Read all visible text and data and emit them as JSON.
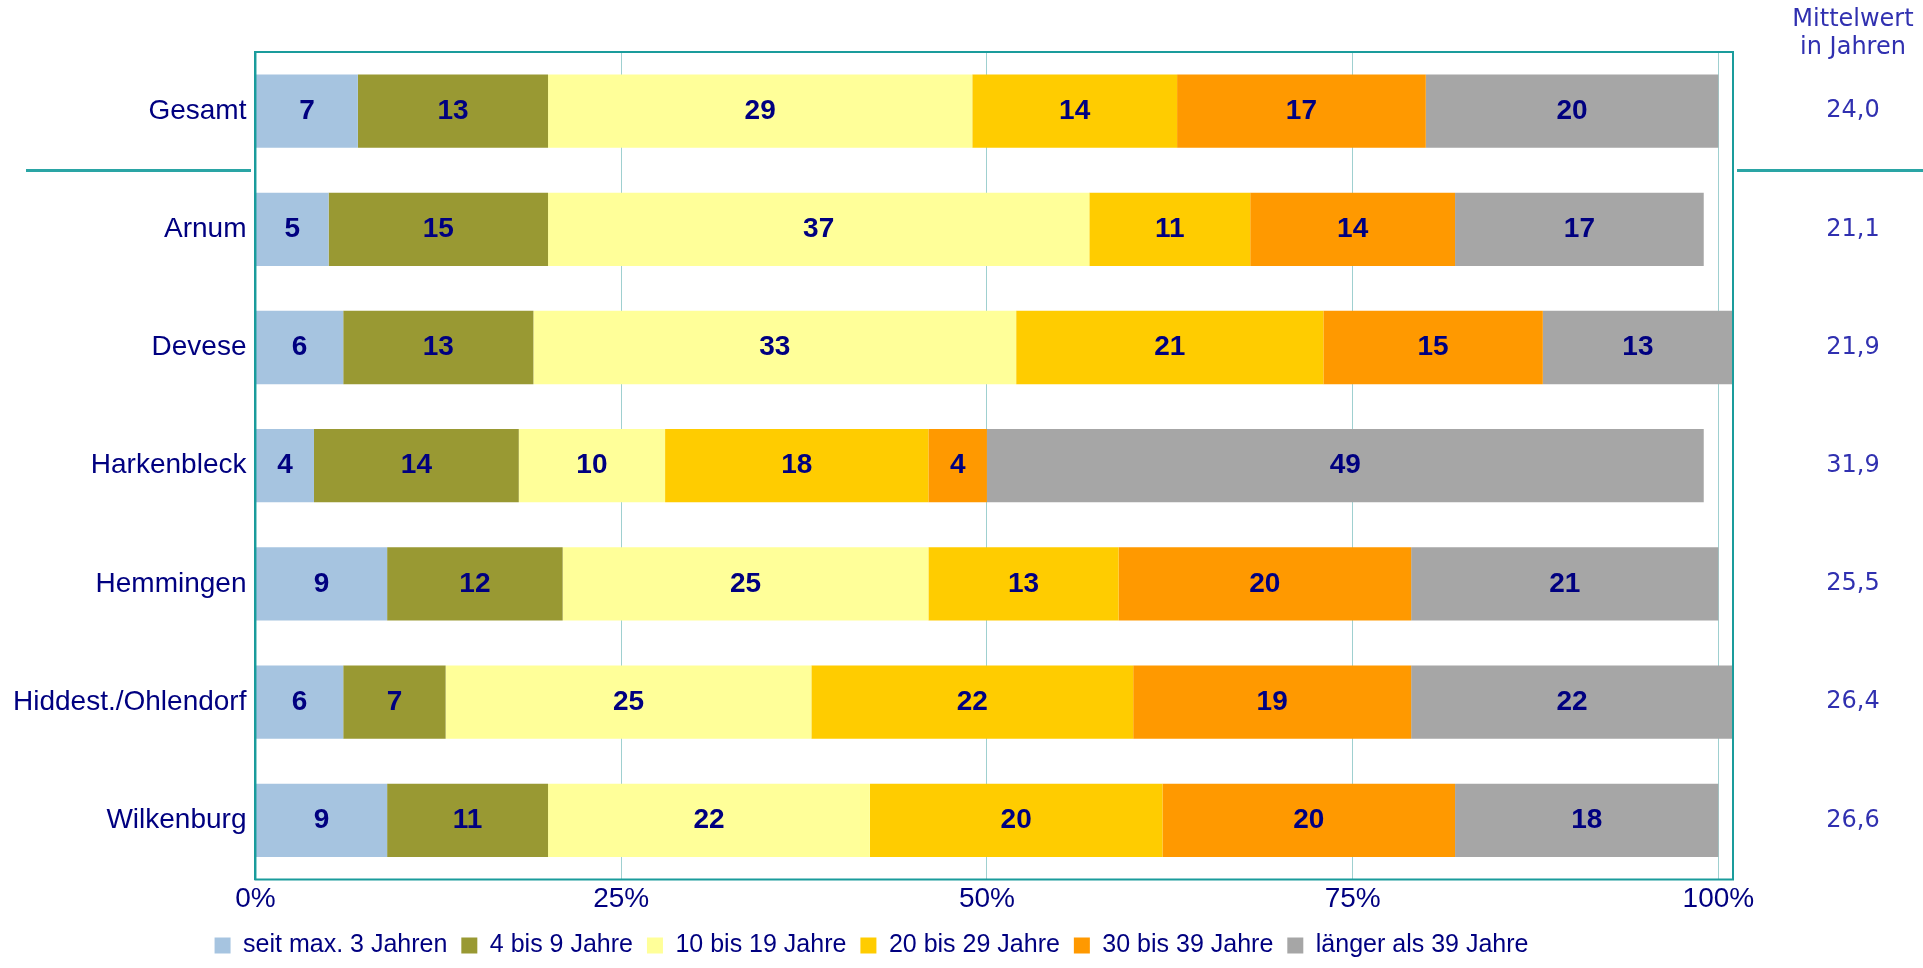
{
  "chart_data": {
    "type": "bar",
    "orientation": "horizontal",
    "stacked": true,
    "data_labels": true,
    "grid": "x",
    "legend": "bottom",
    "categories": [
      "Gesamt",
      "Arnum",
      "Devese",
      "Harkenbleck",
      "Hemmingen",
      "Hiddest./Ohlendorf",
      "Wilkenburg"
    ],
    "xlim": [
      0,
      101
    ],
    "xticks": [
      {
        "value": 0,
        "label": "0%"
      },
      {
        "value": 25,
        "label": "25%"
      },
      {
        "value": 50,
        "label": "50%"
      },
      {
        "value": 75,
        "label": "75%"
      },
      {
        "value": 100,
        "label": "100%"
      }
    ],
    "series": [
      {
        "name": "seit max. 3 Jahren",
        "color": "#a6c4e0",
        "values": [
          7,
          5,
          6,
          4,
          9,
          6,
          9
        ]
      },
      {
        "name": "4 bis 9 Jahre",
        "color": "#999933",
        "values": [
          13,
          15,
          13,
          14,
          12,
          7,
          11
        ]
      },
      {
        "name": "10 bis 19 Jahre",
        "color": "#ffff99",
        "values": [
          29,
          37,
          33,
          10,
          25,
          25,
          22
        ]
      },
      {
        "name": "20 bis 29 Jahre",
        "color": "#ffcc00",
        "values": [
          14,
          11,
          21,
          18,
          13,
          22,
          20
        ]
      },
      {
        "name": "30 bis 39 Jahre",
        "color": "#ff9900",
        "values": [
          17,
          14,
          15,
          4,
          20,
          19,
          20
        ]
      },
      {
        "name": "länger als 39 Jahre",
        "color": "#a6a6a6",
        "values": [
          20,
          17,
          13,
          49,
          21,
          22,
          18
        ]
      }
    ],
    "annotations": [
      "Mittelwert\nin Jahren",
      "24,0",
      "21,1",
      "21,9",
      "31,9",
      "25,5",
      "26,4",
      "26,6"
    ]
  }
}
